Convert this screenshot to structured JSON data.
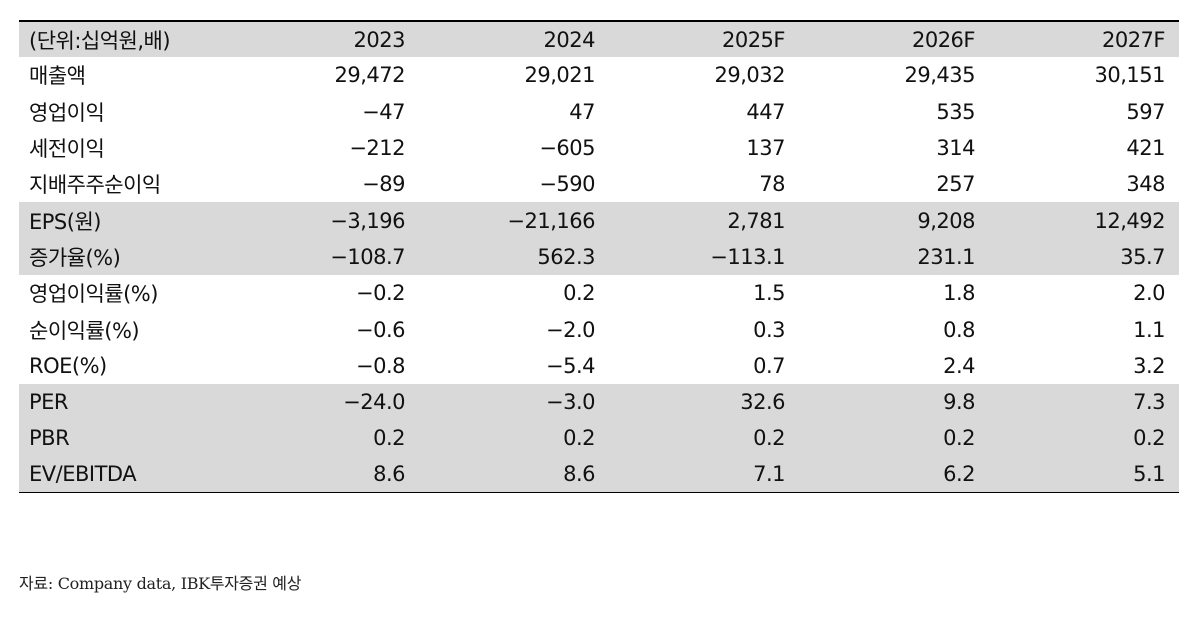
{
  "table": {
    "headers": [
      "(단위:십억원,배)",
      "2023",
      "2024",
      "2025F",
      "2026F",
      "2027F"
    ],
    "rows": [
      {
        "label": "매출액",
        "values": [
          "29,472",
          "29,021",
          "29,032",
          "29,435",
          "30,151"
        ],
        "shaded": false
      },
      {
        "label": "영업이익",
        "values": [
          "−47",
          "47",
          "447",
          "535",
          "597"
        ],
        "shaded": false
      },
      {
        "label": "세전이익",
        "values": [
          "−212",
          "−605",
          "137",
          "314",
          "421"
        ],
        "shaded": false
      },
      {
        "label": "지배주주순이익",
        "values": [
          "−89",
          "−590",
          "78",
          "257",
          "348"
        ],
        "shaded": false
      },
      {
        "label": "EPS(원)",
        "values": [
          "−3,196",
          "−21,166",
          "2,781",
          "9,208",
          "12,492"
        ],
        "shaded": true
      },
      {
        "label": "증가율(%)",
        "values": [
          "−108.7",
          "562.3",
          "−113.1",
          "231.1",
          "35.7"
        ],
        "shaded": true
      },
      {
        "label": "영업이익률(%)",
        "values": [
          "−0.2",
          "0.2",
          "1.5",
          "1.8",
          "2.0"
        ],
        "shaded": false
      },
      {
        "label": "순이익률(%)",
        "values": [
          "−0.6",
          "−2.0",
          "0.3",
          "0.8",
          "1.1"
        ],
        "shaded": false
      },
      {
        "label": "ROE(%)",
        "values": [
          "−0.8",
          "−5.4",
          "0.7",
          "2.4",
          "3.2"
        ],
        "shaded": false
      },
      {
        "label": "PER",
        "values": [
          "−24.0",
          "−3.0",
          "32.6",
          "9.8",
          "7.3"
        ],
        "shaded": true
      },
      {
        "label": "PBR",
        "values": [
          "0.2",
          "0.2",
          "0.2",
          "0.2",
          "0.2"
        ],
        "shaded": true
      },
      {
        "label": "EV/EBITDA",
        "values": [
          "8.6",
          "8.6",
          "7.1",
          "6.2",
          "5.1"
        ],
        "shaded": true
      }
    ]
  },
  "source": "자료: Company data, IBK투자증권 예상",
  "colors": {
    "shade": "#d9d9d9",
    "rule": "#000000"
  }
}
